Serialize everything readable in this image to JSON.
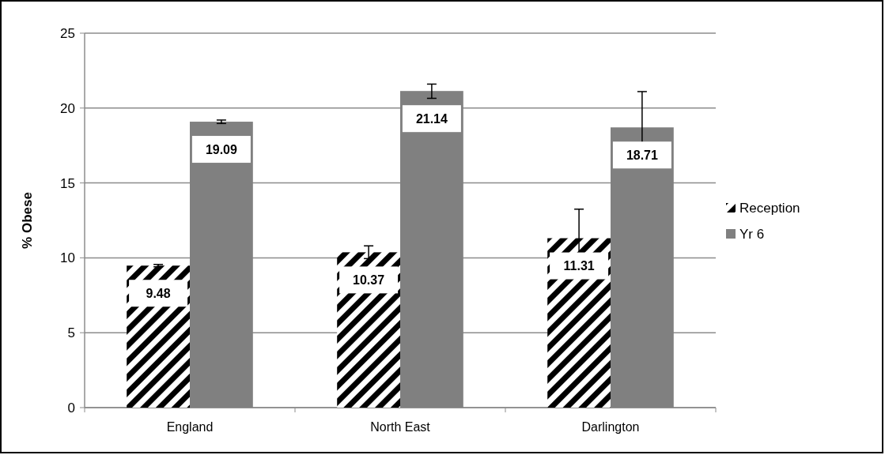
{
  "chart_data": {
    "type": "bar",
    "ylabel": "% Obese",
    "categories": [
      "England",
      "North East",
      "Darlington"
    ],
    "series": [
      {
        "name": "Reception",
        "color": "#000000",
        "values": [
          9.48,
          10.37,
          11.31
        ],
        "errors": [
          [
            9.4,
            9.56
          ],
          [
            9.95,
            10.8
          ],
          [
            9.7,
            13.25
          ]
        ]
      },
      {
        "name": "Yr 6",
        "color": "#808080",
        "values": [
          19.09,
          21.14,
          18.71
        ],
        "errors": [
          [
            18.97,
            19.2
          ],
          [
            20.65,
            21.6
          ],
          [
            16.55,
            21.1
          ]
        ]
      }
    ],
    "ylim": [
      0,
      25
    ],
    "yticks": [
      0,
      5,
      10,
      15,
      20,
      25
    ],
    "grid": "y",
    "legend": "right",
    "data_labels": true
  }
}
